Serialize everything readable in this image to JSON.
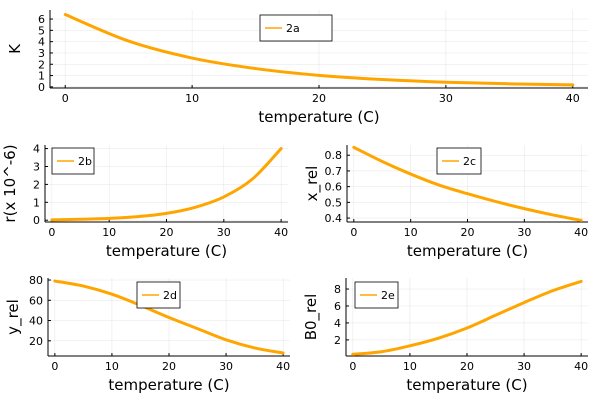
{
  "chart_data": [
    {
      "id": "2a",
      "type": "line",
      "xlabel": "temperature (C)",
      "ylabel": "K",
      "xlim": [
        -1.2,
        41.2
      ],
      "ylim": [
        -0.1,
        6.8
      ],
      "xticks": [
        0,
        10,
        20,
        30,
        40
      ],
      "yticks": [
        0,
        1,
        2,
        3,
        4,
        5,
        6
      ],
      "grid": true,
      "legend_position": "top-center",
      "color": "#FFA500",
      "series": [
        {
          "name": "2a",
          "x": [
            0,
            5,
            10,
            15,
            20,
            25,
            30,
            35,
            40
          ],
          "y": [
            6.4,
            4.05,
            2.55,
            1.62,
            1.02,
            0.65,
            0.41,
            0.27,
            0.18
          ]
        }
      ]
    },
    {
      "id": "2b",
      "type": "line",
      "xlabel": "temperature (C)",
      "ylabel": "r(x 10^-6)",
      "xlim": [
        -1.2,
        41.2
      ],
      "ylim": [
        -0.1,
        4.2
      ],
      "xticks": [
        0,
        10,
        20,
        30,
        40
      ],
      "yticks": [
        0,
        1,
        2,
        3,
        4
      ],
      "grid": true,
      "legend_position": "top-left",
      "color": "#FFA500",
      "series": [
        {
          "name": "2b",
          "x": [
            0,
            5,
            10,
            15,
            20,
            25,
            30,
            35,
            40
          ],
          "y": [
            0.02,
            0.05,
            0.1,
            0.2,
            0.38,
            0.72,
            1.3,
            2.3,
            4.0
          ]
        }
      ]
    },
    {
      "id": "2c",
      "type": "line",
      "xlabel": "temperature (C)",
      "ylabel": "x_rel",
      "xlim": [
        -1.2,
        41.2
      ],
      "ylim": [
        0.375,
        0.865
      ],
      "xticks": [
        0,
        10,
        20,
        30,
        40
      ],
      "yticks": [
        0.4,
        0.5,
        0.6,
        0.7,
        0.8
      ],
      "grid": true,
      "legend_position": "top-center",
      "color": "#FFA500",
      "series": [
        {
          "name": "2c",
          "x": [
            0,
            5,
            10,
            15,
            20,
            25,
            30,
            35,
            40
          ],
          "y": [
            0.85,
            0.76,
            0.68,
            0.61,
            0.555,
            0.505,
            0.46,
            0.42,
            0.385
          ]
        }
      ]
    },
    {
      "id": "2d",
      "type": "line",
      "xlabel": "temperature (C)",
      "ylabel": "y_rel",
      "xlim": [
        -1.2,
        41.2
      ],
      "ylim": [
        5,
        82
      ],
      "xticks": [
        0,
        10,
        20,
        30,
        40
      ],
      "yticks": [
        20,
        40,
        60,
        80
      ],
      "grid": true,
      "legend_position": "top-center",
      "color": "#FFA500",
      "series": [
        {
          "name": "2d",
          "x": [
            0,
            5,
            10,
            15,
            20,
            25,
            30,
            35,
            40
          ],
          "y": [
            79,
            74,
            66,
            55,
            43,
            32,
            21,
            13,
            8
          ]
        }
      ]
    },
    {
      "id": "2e",
      "type": "line",
      "xlabel": "temperature (C)",
      "ylabel": "B0_rel",
      "xlim": [
        -1.2,
        41.2
      ],
      "ylim": [
        0.1,
        9.3
      ],
      "xticks": [
        0,
        10,
        20,
        30,
        40
      ],
      "yticks": [
        2,
        4,
        6,
        8
      ],
      "grid": true,
      "legend_position": "top-left",
      "color": "#FFA500",
      "series": [
        {
          "name": "2e",
          "x": [
            0,
            5,
            10,
            15,
            20,
            25,
            30,
            35,
            40
          ],
          "y": [
            0.3,
            0.6,
            1.3,
            2.2,
            3.4,
            4.9,
            6.4,
            7.8,
            8.9
          ]
        }
      ]
    }
  ]
}
